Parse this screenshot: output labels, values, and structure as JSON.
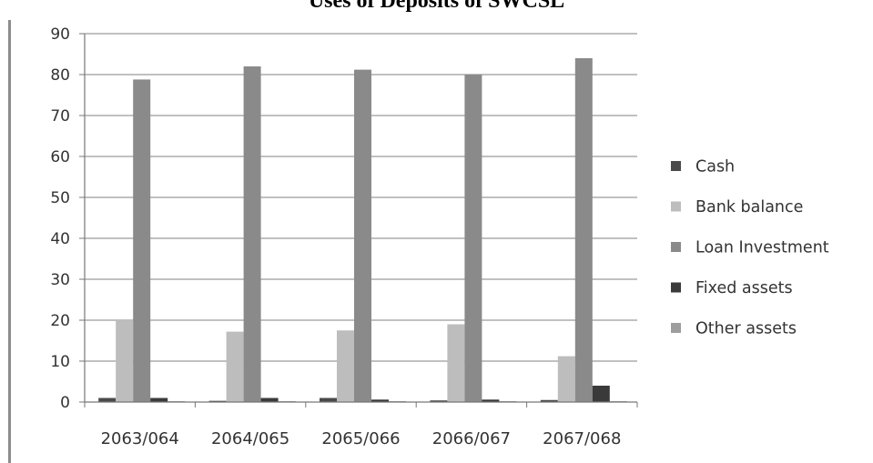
{
  "chart_data": {
    "type": "bar",
    "title": "Uses of Deposits of SWCSL",
    "xlabel": "",
    "ylabel": "",
    "categories": [
      "2063/064",
      "2064/065",
      "2065/066",
      "2066/067",
      "2067/068"
    ],
    "ylim": [
      0,
      90
    ],
    "yticks": [
      0,
      10,
      20,
      30,
      40,
      50,
      60,
      70,
      80,
      90
    ],
    "grid": true,
    "legend_position": "right",
    "series": [
      {
        "name": "Cash",
        "color": "#4a4a4a",
        "values": [
          1.0,
          0.3,
          1.0,
          0.4,
          0.5
        ]
      },
      {
        "name": "Bank balance",
        "color": "#bdbdbd",
        "values": [
          19.8,
          17.2,
          17.5,
          19.0,
          11.2
        ]
      },
      {
        "name": "Loan Investment",
        "color": "#8a8a8a",
        "values": [
          78.8,
          82.0,
          81.2,
          80.0,
          84.0
        ]
      },
      {
        "name": "Fixed assets",
        "color": "#3a3a3a",
        "values": [
          1.0,
          1.0,
          0.6,
          0.6,
          4.0
        ]
      },
      {
        "name": "Other assets",
        "color": "#9e9e9e",
        "values": [
          0.2,
          0.2,
          0.2,
          0.2,
          0.2
        ]
      }
    ]
  }
}
